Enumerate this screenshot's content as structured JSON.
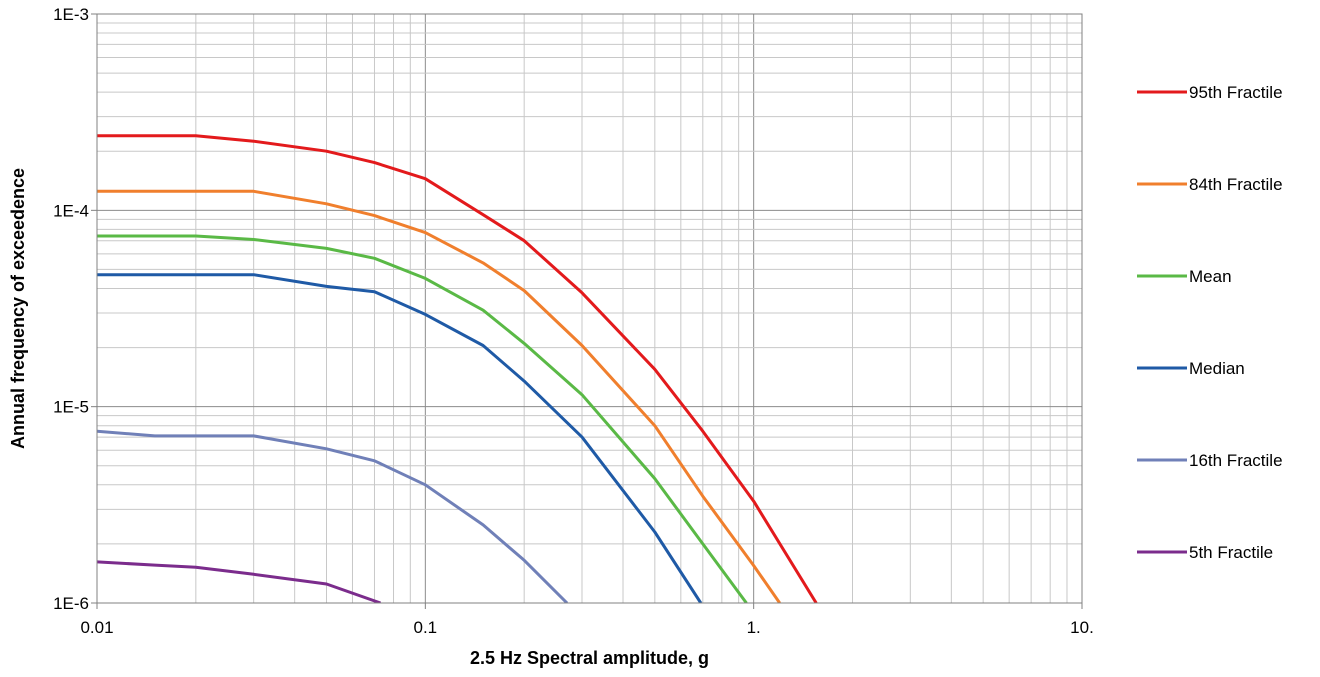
{
  "chart_data": {
    "type": "line",
    "xlabel": "2.5 Hz Spectral  amplitude, g",
    "ylabel": "Annual frequency  of  exceedence",
    "xscale": "log",
    "yscale": "log",
    "xlim": [
      0.01,
      10
    ],
    "ylim": [
      1e-06,
      0.001
    ],
    "grid": true,
    "legend_position": "right",
    "x_tick_labels": [
      "0.01",
      "0.1",
      "1.",
      "10."
    ],
    "y_tick_labels": [
      "1E-6",
      "1E-5",
      "1E-4",
      "1E-3"
    ],
    "series": [
      {
        "name": "95th Fractile",
        "color": "#e31a1c",
        "x": [
          0.01,
          0.02,
          0.03,
          0.05,
          0.07,
          0.1,
          0.15,
          0.2,
          0.3,
          0.5,
          0.7,
          1.0,
          1.55
        ],
        "y": [
          0.00024,
          0.00024,
          0.000225,
          0.0002,
          0.000175,
          0.000145,
          9.5e-05,
          7e-05,
          3.8e-05,
          1.55e-05,
          7.5e-06,
          3.3e-06,
          1e-06
        ]
      },
      {
        "name": "84th Fractile",
        "color": "#f07f2d",
        "x": [
          0.01,
          0.02,
          0.03,
          0.05,
          0.07,
          0.1,
          0.15,
          0.2,
          0.3,
          0.5,
          0.7,
          1.0,
          1.2
        ],
        "y": [
          0.000125,
          0.000125,
          0.000125,
          0.000108,
          9.4e-05,
          7.7e-05,
          5.4e-05,
          3.9e-05,
          2.05e-05,
          8e-06,
          3.5e-06,
          1.55e-06,
          1e-06
        ]
      },
      {
        "name": "Mean",
        "color": "#5ab946",
        "x": [
          0.01,
          0.02,
          0.03,
          0.05,
          0.07,
          0.1,
          0.15,
          0.2,
          0.3,
          0.5,
          0.7,
          0.95
        ],
        "y": [
          7.4e-05,
          7.4e-05,
          7.1e-05,
          6.4e-05,
          5.7e-05,
          4.5e-05,
          3.1e-05,
          2.1e-05,
          1.15e-05,
          4.3e-06,
          2e-06,
          1e-06
        ]
      },
      {
        "name": "Median",
        "color": "#1f5aa6",
        "x": [
          0.01,
          0.02,
          0.03,
          0.05,
          0.07,
          0.1,
          0.15,
          0.2,
          0.3,
          0.5,
          0.69
        ],
        "y": [
          4.7e-05,
          4.7e-05,
          4.7e-05,
          4.1e-05,
          3.85e-05,
          2.95e-05,
          2.05e-05,
          1.35e-05,
          7e-06,
          2.3e-06,
          1e-06
        ]
      },
      {
        "name": "16th Fractile",
        "color": "#7080b8",
        "x": [
          0.01,
          0.015,
          0.02,
          0.03,
          0.05,
          0.07,
          0.1,
          0.15,
          0.2,
          0.27
        ],
        "y": [
          7.5e-06,
          7.1e-06,
          7.1e-06,
          7.1e-06,
          6.1e-06,
          5.3e-06,
          4e-06,
          2.5e-06,
          1.65e-06,
          1e-06
        ]
      },
      {
        "name": "5th Fractile",
        "color": "#7b2c8c",
        "x": [
          0.01,
          0.015,
          0.02,
          0.03,
          0.05,
          0.073
        ],
        "y": [
          1.62e-06,
          1.56e-06,
          1.52e-06,
          1.4e-06,
          1.25e-06,
          1e-06
        ]
      }
    ]
  }
}
